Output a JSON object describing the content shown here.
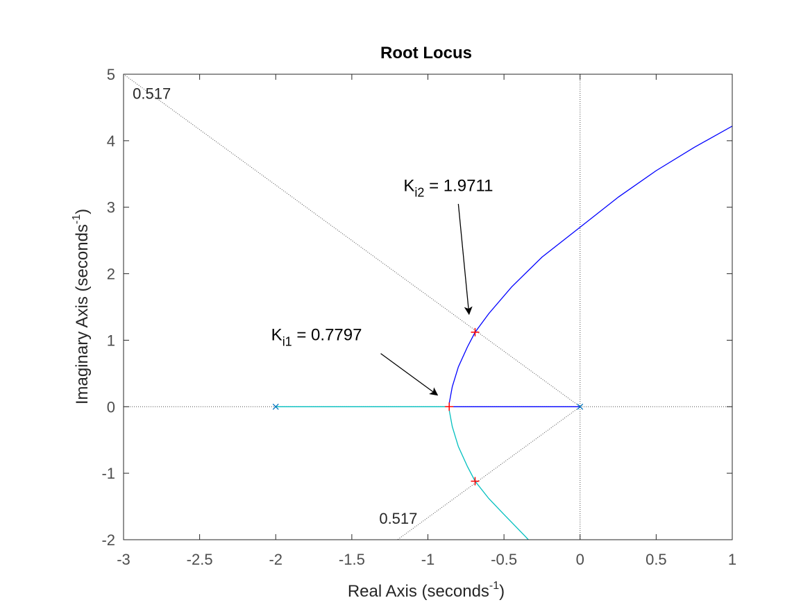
{
  "chart_data": {
    "type": "line",
    "title": "Root Locus",
    "xlabel": "Real Axis (seconds",
    "xlabel_sup": "-1",
    "xlabel_end": ")",
    "ylabel": "Imaginary Axis (seconds",
    "ylabel_sup": "-1",
    "ylabel_end": ")",
    "xlim": [
      -3,
      1
    ],
    "ylim": [
      -2,
      5
    ],
    "xticks": [
      -3,
      -2.5,
      -2,
      -1.5,
      -1,
      -0.5,
      0,
      0.5,
      1
    ],
    "xtick_labels": [
      "-3",
      "-2.5",
      "-2",
      "-1.5",
      "-1",
      "-0.5",
      "0",
      "0.5",
      "1"
    ],
    "yticks": [
      -2,
      -1,
      0,
      1,
      2,
      3,
      4,
      5
    ],
    "ytick_labels": [
      "-2",
      "-1",
      "0",
      "1",
      "2",
      "3",
      "4",
      "5"
    ],
    "grid": false,
    "colors": {
      "branch_upper": "#0000ff",
      "branch_lower": "#00bfbf",
      "pole": "#0072bd",
      "marker": "#ff0000",
      "guide": "#4d4d4d"
    },
    "poles": [
      {
        "x": -2,
        "y": 0
      },
      {
        "x": 0,
        "y": 0
      }
    ],
    "series": [
      {
        "color": "#0000ff",
        "points": [
          [
            0,
            0
          ],
          [
            -0.86,
            0
          ],
          [
            -0.86,
            0.05
          ],
          [
            -0.84,
            0.3
          ],
          [
            -0.8,
            0.6
          ],
          [
            -0.74,
            0.9
          ],
          [
            -0.69,
            1.12
          ],
          [
            -0.6,
            1.4
          ],
          [
            -0.45,
            1.8
          ],
          [
            -0.25,
            2.25
          ],
          [
            0,
            2.7
          ],
          [
            0.25,
            3.15
          ],
          [
            0.5,
            3.55
          ],
          [
            0.75,
            3.9
          ],
          [
            1,
            4.22
          ]
        ]
      },
      {
        "color": "#00bfbf",
        "points": [
          [
            -2,
            0
          ],
          [
            -0.86,
            0
          ],
          [
            -0.86,
            -0.05
          ],
          [
            -0.84,
            -0.3
          ],
          [
            -0.8,
            -0.6
          ],
          [
            -0.74,
            -0.9
          ],
          [
            -0.69,
            -1.12
          ],
          [
            -0.6,
            -1.38
          ],
          [
            -0.5,
            -1.62
          ],
          [
            -0.36,
            -1.95
          ],
          [
            -0.34,
            -2.0
          ]
        ]
      }
    ],
    "markers": [
      {
        "x": -0.86,
        "y": 0
      },
      {
        "x": -0.69,
        "y": 1.12
      },
      {
        "x": -0.69,
        "y": -1.12
      }
    ],
    "damping_lines": [
      {
        "label": "0.517",
        "points": [
          [
            0,
            0
          ],
          [
            -3,
            5
          ]
        ]
      },
      {
        "label": "0.517",
        "points": [
          [
            0,
            0
          ],
          [
            -1.2,
            -2
          ]
        ]
      }
    ],
    "zero_lines": {
      "real": 0,
      "imag": 0
    },
    "annotations": [
      {
        "main": "K",
        "sub": "i1",
        "text": " = 0.7797",
        "text_at": [
          -2.03,
          1.0
        ],
        "arrow_from": [
          -1.31,
          0.8
        ],
        "arrow_to": [
          -0.94,
          0.18
        ]
      },
      {
        "main": "K",
        "sub": "i2",
        "text": " = 1.9711",
        "text_at": [
          -1.16,
          3.24
        ],
        "arrow_from": [
          -0.8,
          3.05
        ],
        "arrow_to": [
          -0.73,
          1.4
        ]
      }
    ],
    "damping_label_at": [
      [
        -2.94,
        4.63
      ],
      [
        -1.32,
        -1.76
      ]
    ]
  }
}
